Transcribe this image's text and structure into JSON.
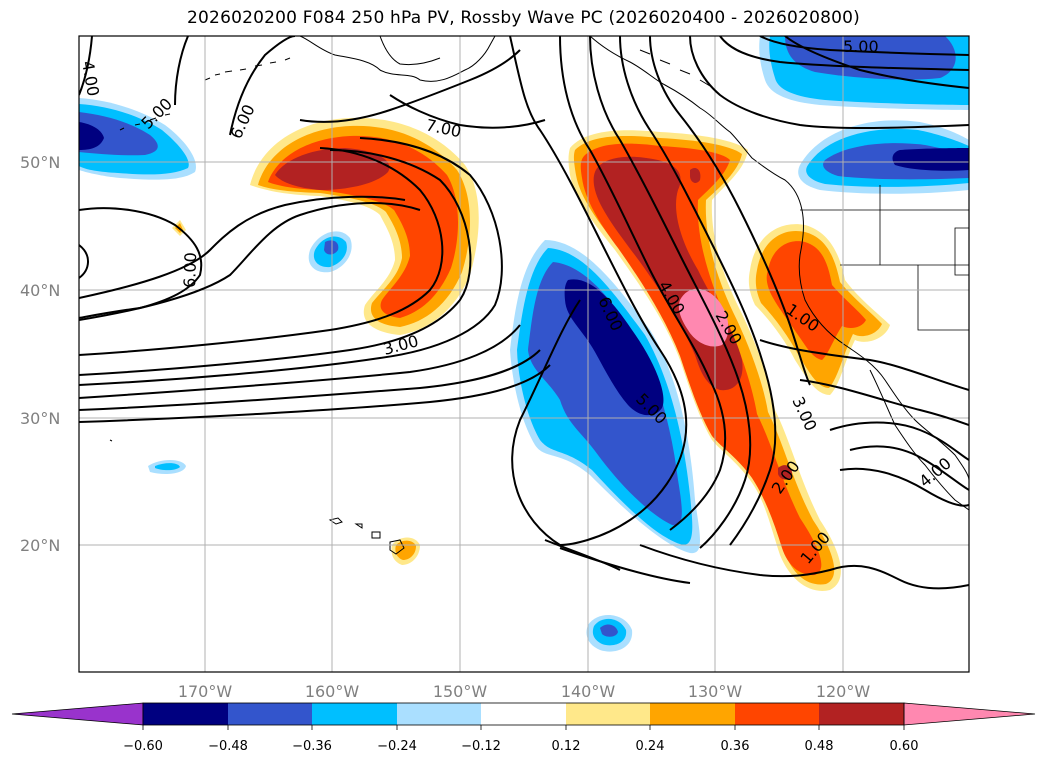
{
  "title": "2026020200 F084 250 hPa PV, Rossby Wave PC (2026020400 - 2026020800)",
  "colors": {
    "neg_extend": "#9933cc",
    "neg_060": "#000080",
    "neg_048": "#3355cc",
    "neg_036": "#00bfff",
    "neg_024": "#aadfff",
    "neutral": "#ffffff",
    "pos_012": "#ffe88a",
    "pos_024": "#ffa500",
    "pos_036": "#ff4500",
    "pos_048": "#b22222",
    "pos_extend": "#ff88b0"
  },
  "map": {
    "lat_labels": [
      "50°N",
      "40°N",
      "30°N",
      "20°N"
    ],
    "lon_labels": [
      "170°W",
      "160°W",
      "150°W",
      "140°W",
      "130°W",
      "120°W"
    ],
    "gridlines": true
  },
  "contours": {
    "labels": [
      "4.00",
      "5.00",
      "6.00",
      "7.00",
      "6.00",
      "3.00",
      "4.00",
      "6.00",
      "5.00",
      "2.00",
      "1.00",
      "3.00",
      "2.00",
      "1.00",
      "4.00",
      "5.00"
    ]
  },
  "colorbar": {
    "ticks": [
      "−0.60",
      "−0.48",
      "−0.36",
      "−0.24",
      "−0.12",
      "0.12",
      "0.24",
      "0.36",
      "0.48",
      "0.60"
    ]
  }
}
